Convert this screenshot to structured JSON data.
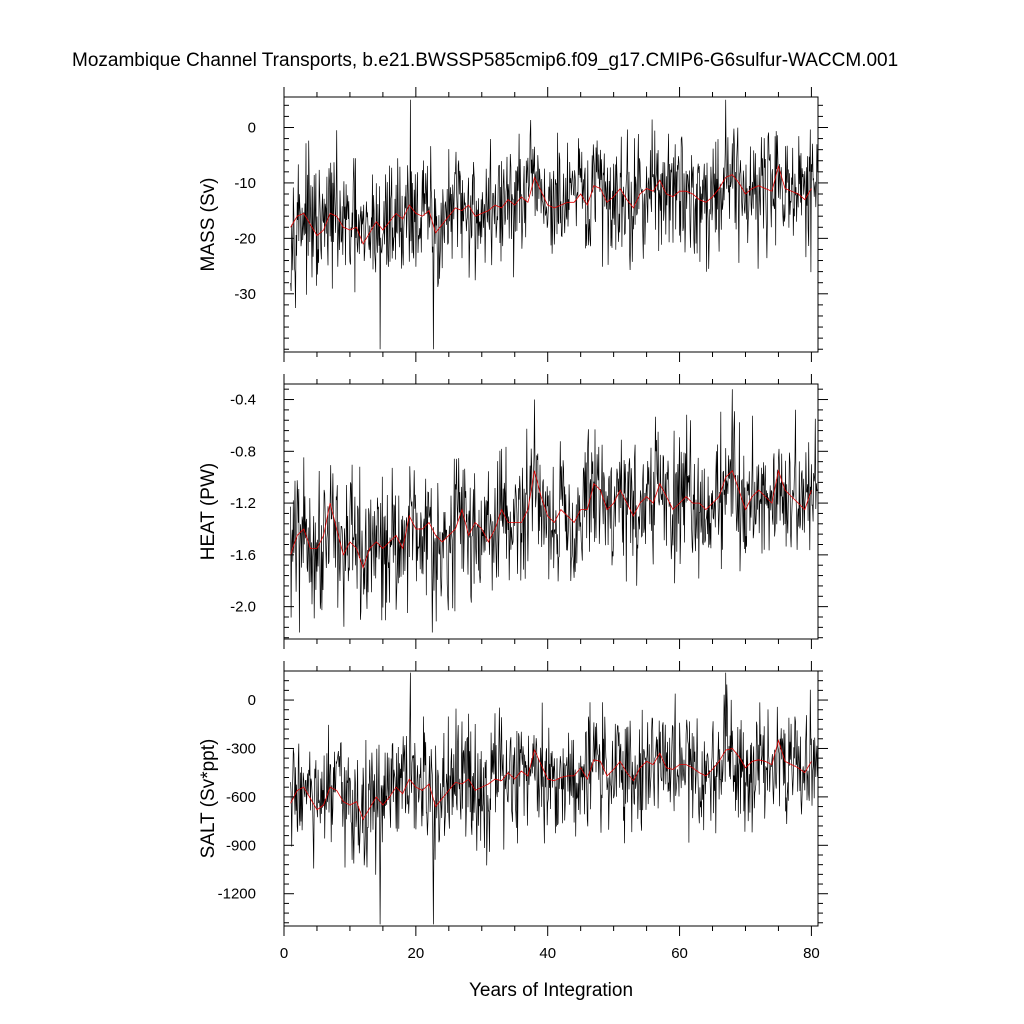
{
  "chart_data": {
    "title": "Mozambique Channel Transports, b.e21.BWSSP585cmip6.f09_g17.CMIP6-G6sulfur-WACCM.001",
    "type": "line",
    "xlabel": "Years of Integration",
    "xlim": [
      0,
      81
    ],
    "xticks": [
      "0",
      "20",
      "40",
      "60",
      "80"
    ],
    "line_colors": {
      "monthly": "#000000",
      "annual_mean": "#e00000"
    },
    "panels": [
      {
        "ylabel": "MASS (Sv)",
        "ylim": [
          -40.5,
          5.5
        ],
        "yticks": [
          "0",
          "-10",
          "-20",
          "-30"
        ],
        "annual_mean": [
          {
            "x": 1,
            "y": -18.0
          },
          {
            "x": 2,
            "y": -16.0
          },
          {
            "x": 3,
            "y": -15.5
          },
          {
            "x": 4,
            "y": -17.5
          },
          {
            "x": 5,
            "y": -19.5
          },
          {
            "x": 6,
            "y": -18.5
          },
          {
            "x": 7,
            "y": -15.5
          },
          {
            "x": 8,
            "y": -16.0
          },
          {
            "x": 9,
            "y": -18.0
          },
          {
            "x": 10,
            "y": -18.5
          },
          {
            "x": 11,
            "y": -18.0
          },
          {
            "x": 12,
            "y": -21.0
          },
          {
            "x": 13,
            "y": -19.0
          },
          {
            "x": 14,
            "y": -17.0
          },
          {
            "x": 15,
            "y": -18.5
          },
          {
            "x": 16,
            "y": -17.0
          },
          {
            "x": 17,
            "y": -15.5
          },
          {
            "x": 18,
            "y": -16.5
          },
          {
            "x": 19,
            "y": -14.0
          },
          {
            "x": 20,
            "y": -15.5
          },
          {
            "x": 21,
            "y": -16.0
          },
          {
            "x": 22,
            "y": -15.0
          },
          {
            "x": 23,
            "y": -19.0
          },
          {
            "x": 24,
            "y": -17.5
          },
          {
            "x": 25,
            "y": -16.0
          },
          {
            "x": 26,
            "y": -14.5
          },
          {
            "x": 27,
            "y": -15.0
          },
          {
            "x": 28,
            "y": -14.0
          },
          {
            "x": 29,
            "y": -16.0
          },
          {
            "x": 30,
            "y": -15.5
          },
          {
            "x": 31,
            "y": -15.0
          },
          {
            "x": 32,
            "y": -14.0
          },
          {
            "x": 33,
            "y": -14.5
          },
          {
            "x": 34,
            "y": -13.0
          },
          {
            "x": 35,
            "y": -14.0
          },
          {
            "x": 36,
            "y": -12.5
          },
          {
            "x": 37,
            "y": -13.5
          },
          {
            "x": 38,
            "y": -9.0
          },
          {
            "x": 39,
            "y": -11.5
          },
          {
            "x": 40,
            "y": -14.0
          },
          {
            "x": 41,
            "y": -14.5
          },
          {
            "x": 42,
            "y": -14.0
          },
          {
            "x": 43,
            "y": -13.5
          },
          {
            "x": 44,
            "y": -13.5
          },
          {
            "x": 45,
            "y": -12.0
          },
          {
            "x": 46,
            "y": -14.0
          },
          {
            "x": 47,
            "y": -10.5
          },
          {
            "x": 48,
            "y": -11.0
          },
          {
            "x": 49,
            "y": -13.5
          },
          {
            "x": 50,
            "y": -12.5
          },
          {
            "x": 51,
            "y": -11.0
          },
          {
            "x": 52,
            "y": -13.0
          },
          {
            "x": 53,
            "y": -14.5
          },
          {
            "x": 54,
            "y": -12.0
          },
          {
            "x": 55,
            "y": -11.0
          },
          {
            "x": 56,
            "y": -11.5
          },
          {
            "x": 57,
            "y": -9.5
          },
          {
            "x": 58,
            "y": -12.0
          },
          {
            "x": 59,
            "y": -12.5
          },
          {
            "x": 60,
            "y": -11.5
          },
          {
            "x": 61,
            "y": -11.5
          },
          {
            "x": 62,
            "y": -12.0
          },
          {
            "x": 63,
            "y": -13.0
          },
          {
            "x": 64,
            "y": -13.5
          },
          {
            "x": 65,
            "y": -12.5
          },
          {
            "x": 66,
            "y": -11.0
          },
          {
            "x": 67,
            "y": -9.0
          },
          {
            "x": 68,
            "y": -8.5
          },
          {
            "x": 69,
            "y": -10.0
          },
          {
            "x": 70,
            "y": -12.0
          },
          {
            "x": 71,
            "y": -11.0
          },
          {
            "x": 72,
            "y": -10.5
          },
          {
            "x": 73,
            "y": -11.0
          },
          {
            "x": 74,
            "y": -11.5
          },
          {
            "x": 75,
            "y": -7.0
          },
          {
            "x": 76,
            "y": -11.0
          },
          {
            "x": 77,
            "y": -11.5
          },
          {
            "x": 78,
            "y": -12.0
          },
          {
            "x": 79,
            "y": -13.0
          },
          {
            "x": 80,
            "y": -11.0
          }
        ],
        "monthly_stats": {
          "spread": 5.5,
          "min": -40,
          "max": 5,
          "extremes": [
            {
              "x": 14.6,
              "y": -40
            },
            {
              "x": 22.7,
              "y": -40
            },
            {
              "x": 19.2,
              "y": 5
            },
            {
              "x": 67.0,
              "y": 5
            }
          ]
        }
      },
      {
        "ylabel": "HEAT (PW)",
        "ylim": [
          -2.25,
          -0.28
        ],
        "yticks": [
          "-0.4",
          "-0.8",
          "-1.2",
          "-1.6",
          "-2.0"
        ],
        "annual_mean": [
          {
            "x": 1,
            "y": -1.6
          },
          {
            "x": 2,
            "y": -1.45
          },
          {
            "x": 3,
            "y": -1.4
          },
          {
            "x": 4,
            "y": -1.55
          },
          {
            "x": 5,
            "y": -1.55
          },
          {
            "x": 6,
            "y": -1.45
          },
          {
            "x": 7,
            "y": -1.2
          },
          {
            "x": 8,
            "y": -1.4
          },
          {
            "x": 9,
            "y": -1.6
          },
          {
            "x": 10,
            "y": -1.5
          },
          {
            "x": 11,
            "y": -1.55
          },
          {
            "x": 12,
            "y": -1.7
          },
          {
            "x": 13,
            "y": -1.55
          },
          {
            "x": 14,
            "y": -1.5
          },
          {
            "x": 15,
            "y": -1.55
          },
          {
            "x": 16,
            "y": -1.5
          },
          {
            "x": 17,
            "y": -1.45
          },
          {
            "x": 18,
            "y": -1.55
          },
          {
            "x": 19,
            "y": -1.3
          },
          {
            "x": 20,
            "y": -1.4
          },
          {
            "x": 21,
            "y": -1.4
          },
          {
            "x": 22,
            "y": -1.35
          },
          {
            "x": 23,
            "y": -1.45
          },
          {
            "x": 24,
            "y": -1.5
          },
          {
            "x": 25,
            "y": -1.45
          },
          {
            "x": 26,
            "y": -1.4
          },
          {
            "x": 27,
            "y": -1.25
          },
          {
            "x": 28,
            "y": -1.45
          },
          {
            "x": 29,
            "y": -1.35
          },
          {
            "x": 30,
            "y": -1.4
          },
          {
            "x": 31,
            "y": -1.5
          },
          {
            "x": 32,
            "y": -1.4
          },
          {
            "x": 33,
            "y": -1.25
          },
          {
            "x": 34,
            "y": -1.35
          },
          {
            "x": 35,
            "y": -1.35
          },
          {
            "x": 36,
            "y": -1.35
          },
          {
            "x": 37,
            "y": -1.25
          },
          {
            "x": 38,
            "y": -0.95
          },
          {
            "x": 39,
            "y": -1.15
          },
          {
            "x": 40,
            "y": -1.3
          },
          {
            "x": 41,
            "y": -1.35
          },
          {
            "x": 42,
            "y": -1.25
          },
          {
            "x": 43,
            "y": -1.3
          },
          {
            "x": 44,
            "y": -1.35
          },
          {
            "x": 45,
            "y": -1.25
          },
          {
            "x": 46,
            "y": -1.25
          },
          {
            "x": 47,
            "y": -1.05
          },
          {
            "x": 48,
            "y": -1.1
          },
          {
            "x": 49,
            "y": -1.25
          },
          {
            "x": 50,
            "y": -1.2
          },
          {
            "x": 51,
            "y": -1.1
          },
          {
            "x": 52,
            "y": -1.2
          },
          {
            "x": 53,
            "y": -1.3
          },
          {
            "x": 54,
            "y": -1.2
          },
          {
            "x": 55,
            "y": -1.15
          },
          {
            "x": 56,
            "y": -1.2
          },
          {
            "x": 57,
            "y": -1.05
          },
          {
            "x": 58,
            "y": -1.15
          },
          {
            "x": 59,
            "y": -1.25
          },
          {
            "x": 60,
            "y": -1.2
          },
          {
            "x": 61,
            "y": -1.15
          },
          {
            "x": 62,
            "y": -1.2
          },
          {
            "x": 63,
            "y": -1.2
          },
          {
            "x": 64,
            "y": -1.25
          },
          {
            "x": 65,
            "y": -1.2
          },
          {
            "x": 66,
            "y": -1.15
          },
          {
            "x": 67,
            "y": -1.0
          },
          {
            "x": 68,
            "y": -0.95
          },
          {
            "x": 69,
            "y": -1.1
          },
          {
            "x": 70,
            "y": -1.25
          },
          {
            "x": 71,
            "y": -1.15
          },
          {
            "x": 72,
            "y": -1.1
          },
          {
            "x": 73,
            "y": -1.15
          },
          {
            "x": 74,
            "y": -1.2
          },
          {
            "x": 75,
            "y": -0.95
          },
          {
            "x": 76,
            "y": -1.1
          },
          {
            "x": 77,
            "y": -1.15
          },
          {
            "x": 78,
            "y": -1.2
          },
          {
            "x": 79,
            "y": -1.25
          },
          {
            "x": 80,
            "y": -1.1
          }
        ],
        "monthly_stats": {
          "spread": 0.26,
          "min": -2.2,
          "max": -0.32,
          "extremes": [
            {
              "x": 2.3,
              "y": -2.2
            },
            {
              "x": 22.5,
              "y": -2.2
            },
            {
              "x": 38.0,
              "y": -0.4
            },
            {
              "x": 68.0,
              "y": -0.32
            }
          ]
        }
      },
      {
        "ylabel": "SALT (Sv*ppt)",
        "ylim": [
          -1400,
          180
        ],
        "yticks": [
          "0",
          "-300",
          "-600",
          "-900",
          "-1200"
        ],
        "annual_mean": [
          {
            "x": 1,
            "y": -640
          },
          {
            "x": 2,
            "y": -560
          },
          {
            "x": 3,
            "y": -540
          },
          {
            "x": 4,
            "y": -610
          },
          {
            "x": 5,
            "y": -680
          },
          {
            "x": 6,
            "y": -650
          },
          {
            "x": 7,
            "y": -540
          },
          {
            "x": 8,
            "y": -560
          },
          {
            "x": 9,
            "y": -630
          },
          {
            "x": 10,
            "y": -650
          },
          {
            "x": 11,
            "y": -630
          },
          {
            "x": 12,
            "y": -740
          },
          {
            "x": 13,
            "y": -670
          },
          {
            "x": 14,
            "y": -600
          },
          {
            "x": 15,
            "y": -650
          },
          {
            "x": 16,
            "y": -600
          },
          {
            "x": 17,
            "y": -540
          },
          {
            "x": 18,
            "y": -580
          },
          {
            "x": 19,
            "y": -490
          },
          {
            "x": 20,
            "y": -540
          },
          {
            "x": 21,
            "y": -560
          },
          {
            "x": 22,
            "y": -520
          },
          {
            "x": 23,
            "y": -660
          },
          {
            "x": 24,
            "y": -610
          },
          {
            "x": 25,
            "y": -560
          },
          {
            "x": 26,
            "y": -510
          },
          {
            "x": 27,
            "y": -520
          },
          {
            "x": 28,
            "y": -490
          },
          {
            "x": 29,
            "y": -560
          },
          {
            "x": 30,
            "y": -540
          },
          {
            "x": 31,
            "y": -520
          },
          {
            "x": 32,
            "y": -490
          },
          {
            "x": 33,
            "y": -500
          },
          {
            "x": 34,
            "y": -450
          },
          {
            "x": 35,
            "y": -490
          },
          {
            "x": 36,
            "y": -440
          },
          {
            "x": 37,
            "y": -470
          },
          {
            "x": 38,
            "y": -310
          },
          {
            "x": 39,
            "y": -400
          },
          {
            "x": 40,
            "y": -490
          },
          {
            "x": 41,
            "y": -500
          },
          {
            "x": 42,
            "y": -480
          },
          {
            "x": 43,
            "y": -470
          },
          {
            "x": 44,
            "y": -470
          },
          {
            "x": 45,
            "y": -420
          },
          {
            "x": 46,
            "y": -490
          },
          {
            "x": 47,
            "y": -370
          },
          {
            "x": 48,
            "y": -380
          },
          {
            "x": 49,
            "y": -470
          },
          {
            "x": 50,
            "y": -430
          },
          {
            "x": 51,
            "y": -380
          },
          {
            "x": 52,
            "y": -450
          },
          {
            "x": 53,
            "y": -500
          },
          {
            "x": 54,
            "y": -420
          },
          {
            "x": 55,
            "y": -380
          },
          {
            "x": 56,
            "y": -400
          },
          {
            "x": 57,
            "y": -330
          },
          {
            "x": 58,
            "y": -420
          },
          {
            "x": 59,
            "y": -430
          },
          {
            "x": 60,
            "y": -400
          },
          {
            "x": 61,
            "y": -400
          },
          {
            "x": 62,
            "y": -420
          },
          {
            "x": 63,
            "y": -450
          },
          {
            "x": 64,
            "y": -470
          },
          {
            "x": 65,
            "y": -430
          },
          {
            "x": 66,
            "y": -380
          },
          {
            "x": 67,
            "y": -310
          },
          {
            "x": 68,
            "y": -300
          },
          {
            "x": 69,
            "y": -350
          },
          {
            "x": 70,
            "y": -420
          },
          {
            "x": 71,
            "y": -380
          },
          {
            "x": 72,
            "y": -370
          },
          {
            "x": 73,
            "y": -380
          },
          {
            "x": 74,
            "y": -400
          },
          {
            "x": 75,
            "y": -250
          },
          {
            "x": 76,
            "y": -380
          },
          {
            "x": 77,
            "y": -400
          },
          {
            "x": 78,
            "y": -420
          },
          {
            "x": 79,
            "y": -450
          },
          {
            "x": 80,
            "y": -380
          }
        ],
        "monthly_stats": {
          "spread": 190,
          "min": -1390,
          "max": 170,
          "extremes": [
            {
              "x": 14.6,
              "y": -1390
            },
            {
              "x": 22.7,
              "y": -1390
            },
            {
              "x": 19.2,
              "y": 170
            },
            {
              "x": 67.0,
              "y": 170
            }
          ]
        }
      }
    ]
  }
}
